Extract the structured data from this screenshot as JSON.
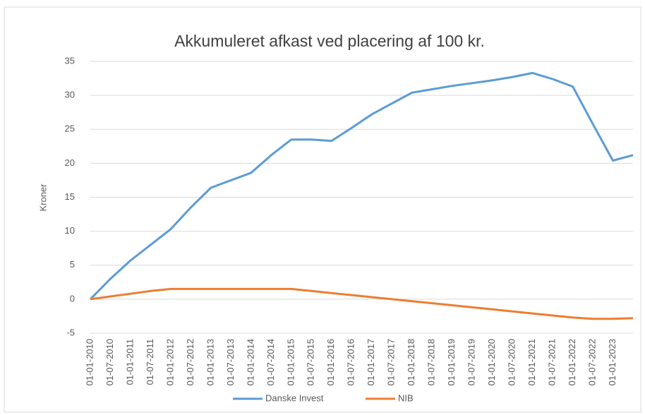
{
  "chart_data": {
    "type": "line",
    "title": "Akkumuleret afkast ved placering af 100 kr.",
    "y_label": "Kroner",
    "categories": [
      "01-01-2010",
      "01-07-2010",
      "01-01-2011",
      "01-07-2011",
      "01-01-2012",
      "01-07-2012",
      "01-01-2013",
      "01-07-2013",
      "01-01-2014",
      "01-07-2014",
      "01-01-2015",
      "01-07-2015",
      "01-01-2016",
      "01-07-2016",
      "01-01-2017",
      "01-07-2017",
      "01-01-2018",
      "01-07-2018",
      "01-01-2019",
      "01-07-2019",
      "01-01-2020",
      "01-07-2020",
      "01-01-2021",
      "01-07-2021",
      "01-01-2022",
      "01-07-2022",
      "01-01-2023",
      null
    ],
    "series": [
      {
        "name": "Danske Invest",
        "color": "#5b9bd5",
        "values": [
          0,
          3.0,
          5.7,
          8.0,
          10.3,
          13.5,
          16.4,
          17.5,
          18.6,
          21.2,
          23.5,
          23.5,
          23.3,
          25.2,
          27.2,
          28.8,
          30.4,
          30.9,
          31.4,
          31.8,
          32.2,
          32.7,
          33.3,
          32.4,
          31.3,
          25.8,
          20.4,
          21.2
        ]
      },
      {
        "name": "NIB",
        "color": "#ed7d31",
        "values": [
          0,
          0.4,
          0.8,
          1.2,
          1.5,
          1.5,
          1.5,
          1.5,
          1.5,
          1.5,
          1.5,
          1.2,
          0.9,
          0.6,
          0.3,
          0,
          -0.3,
          -0.6,
          -0.9,
          -1.2,
          -1.5,
          -1.8,
          -2.1,
          -2.4,
          -2.7,
          -2.9,
          -2.9,
          -2.8
        ]
      }
    ],
    "ylim": [
      -5,
      35
    ],
    "yticks": [
      -5,
      0,
      5,
      10,
      15,
      20,
      25,
      30,
      35
    ],
    "grid": true
  }
}
